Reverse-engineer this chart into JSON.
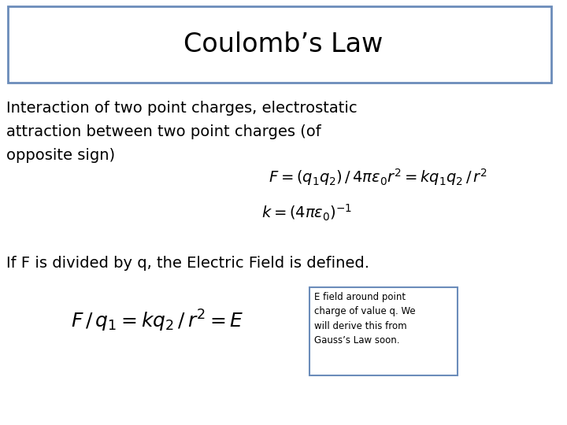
{
  "title": "Coulomb’s Law",
  "title_box_color": "#6b8cba",
  "bg_color": "#ffffff",
  "text_color": "#000000",
  "body_text_line1": "Interaction of two point charges, electrostatic",
  "body_text_line2": "attraction between two point charges (of",
  "body_text_line3": "opposite sign)",
  "formula1": "$F=(q_1q_2)\\,/\\,4\\pi\\varepsilon_0 r^2=kq_1q_2\\,/\\,r^2$",
  "formula2": "$k=(4\\pi\\varepsilon_0)^{-1}$",
  "ef_text_line1": "If F is divided by q, the Electric Field is defined.",
  "formula3": "$F\\,/\\,q_1=kq_2\\,/\\,r^2=E$",
  "annotation_line1": "E field around point",
  "annotation_line2": "charge of value q. We",
  "annotation_line3": "will derive this from",
  "annotation_line4": "Gauss’s Law soon.",
  "annotation_box_color": "#6b8cba"
}
